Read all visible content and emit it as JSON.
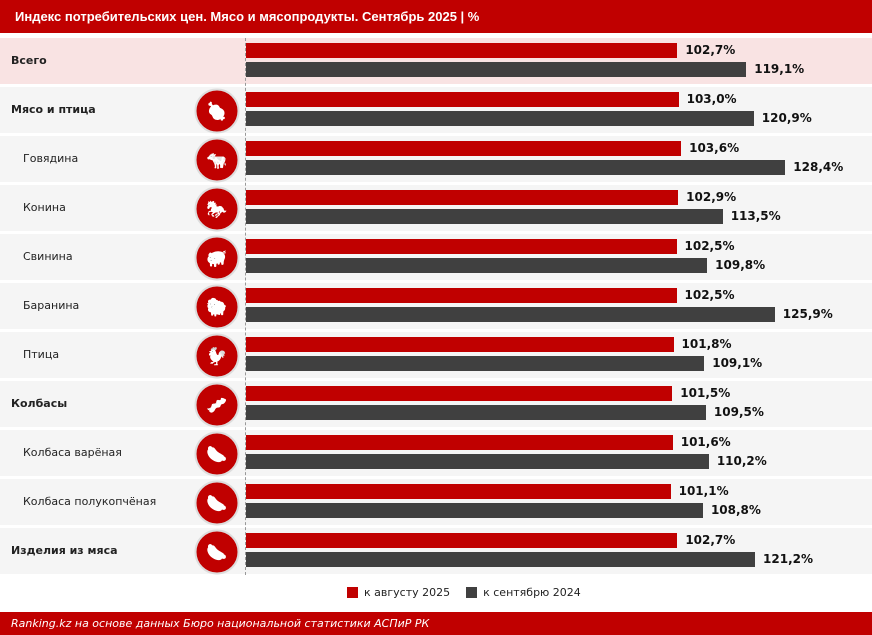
{
  "header": {
    "title": "Индекс потребительских цен. Мясо и мясопродукты. Сентябрь 2025 | %"
  },
  "chart_data": {
    "type": "bar",
    "orientation": "horizontal",
    "categories": [
      "Всего",
      "Мясо и птица",
      "Говядина",
      "Конина",
      "Свинина",
      "Баранина",
      "Птица",
      "Колбасы",
      "Колбаса варёная",
      "Колбаса полукопчёная",
      "Изделия из мяса"
    ],
    "category_level": [
      "total",
      "group",
      "sub",
      "sub",
      "sub",
      "sub",
      "sub",
      "group",
      "sub",
      "sub",
      "group"
    ],
    "icons": [
      null,
      "meat-poultry-icon",
      "cow-icon",
      "horse-icon",
      "pig-icon",
      "sheep-icon",
      "chicken-icon",
      "sausages-icon",
      "boiled-sausage-icon",
      "smoked-sausage-icon",
      "sausage-link-icon"
    ],
    "series": [
      {
        "name": "к августу 2025",
        "color": "#c00000",
        "values": [
          102.7,
          103.0,
          103.6,
          102.9,
          102.5,
          102.5,
          101.8,
          101.5,
          101.6,
          101.1,
          102.7
        ],
        "labels": [
          "102,7%",
          "103,0%",
          "103,6%",
          "102,9%",
          "102,5%",
          "102,5%",
          "101,8%",
          "101,5%",
          "101,6%",
          "101,1%",
          "102,7%"
        ]
      },
      {
        "name": "к сентябрю 2024",
        "color": "#404040",
        "values": [
          119.1,
          120.9,
          128.4,
          113.5,
          109.8,
          125.9,
          109.1,
          109.5,
          110.2,
          108.8,
          121.2
        ],
        "labels": [
          "119,1%",
          "120,9%",
          "128,4%",
          "113,5%",
          "109,8%",
          "125,9%",
          "109,1%",
          "109,5%",
          "110,2%",
          "108,8%",
          "121,2%"
        ]
      }
    ],
    "legend": "bottom",
    "grid": false
  },
  "legend": {
    "items": [
      "к августу 2025",
      "к сентябрю 2024"
    ]
  },
  "footer": {
    "source": "Ranking.kz на основе данных Бюро национальной статистики АСПиР РК"
  }
}
